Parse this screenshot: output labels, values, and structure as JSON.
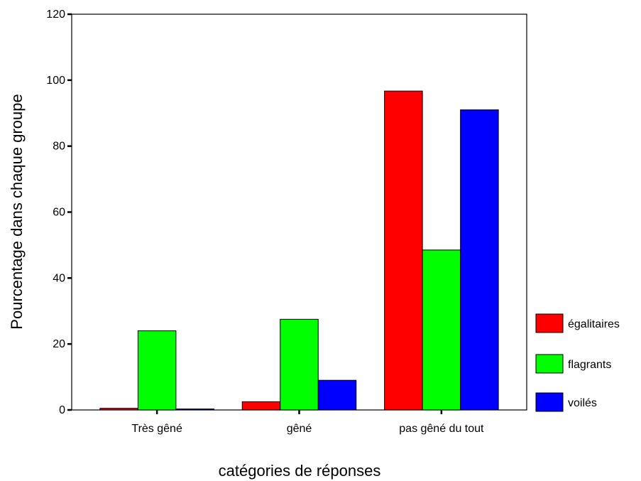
{
  "chart_data": {
    "type": "bar",
    "title": "",
    "xlabel": "catégories de réponses",
    "ylabel": "Pourcentage dans chaque groupe",
    "ylim": [
      0,
      120
    ],
    "yticks": [
      0,
      20,
      40,
      60,
      80,
      100,
      120
    ],
    "categories": [
      "Très gêné",
      "gêné",
      "pas gêné du tout"
    ],
    "series": [
      {
        "name": "égalitaires",
        "color": "#ff0000",
        "values": [
          0.5,
          2.5,
          96.7
        ]
      },
      {
        "name": "flagrants",
        "color": "#00ff00",
        "values": [
          24.0,
          27.5,
          48.5
        ]
      },
      {
        "name": "voilés",
        "color": "#0000ff",
        "values": [
          0.3,
          9.0,
          91.0
        ]
      }
    ],
    "legend_position": "right",
    "grid": false
  }
}
